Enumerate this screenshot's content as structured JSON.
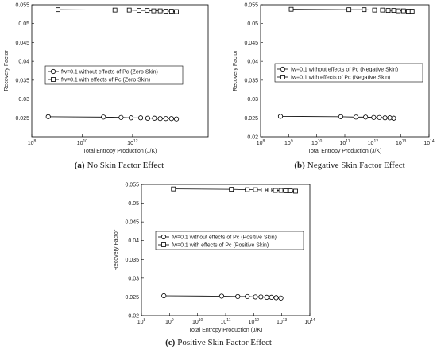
{
  "chart_data": [
    {
      "type": "line",
      "x_label": "Total Entropy Production (J/K)",
      "y_label": "Recovery Factor",
      "caption_label": "(a)",
      "caption": "No Skin Factor Effect",
      "xscale": "log",
      "xlim": [
        100000000,
        1000000000000000.0
      ],
      "xticks": [
        {
          "value": 100000000,
          "label": "10",
          "exponent": "8"
        },
        {
          "value": 10000000000,
          "label": "10",
          "exponent": "10"
        },
        {
          "value": 1000000000000,
          "label": "10",
          "exponent": "12"
        }
      ],
      "ylim": [
        0.02,
        0.055
      ],
      "yticks": [
        0.025,
        0.03,
        0.035,
        0.04,
        0.045,
        0.05,
        0.055
      ],
      "legend": "center-left",
      "series": [
        {
          "name": "fw=0.1 without effects of Pc (Zero Skin)",
          "color": "#000000",
          "marker": "circle",
          "x": [
            450000000,
            70000000000,
            350000000000,
            870000000000,
            2100000000000,
            4000000000000,
            7400000000000,
            12500000000000,
            21000000000000,
            35000000000000,
            55000000000000
          ],
          "values": [
            0.0253,
            0.0252,
            0.0251,
            0.025,
            0.025,
            0.0249,
            0.0249,
            0.0248,
            0.0248,
            0.0248,
            0.0247
          ]
        },
        {
          "name": "fw=0.1 with effects of Pc (Zero Skin)",
          "color": "#000000",
          "marker": "square",
          "x": [
            1100000000,
            200000000000,
            740000000000,
            1800000000000,
            3800000000000,
            6900000000000,
            12500000000000,
            21000000000000,
            35000000000000,
            55000000000000
          ],
          "values": [
            0.0537,
            0.0536,
            0.0536,
            0.0535,
            0.0535,
            0.0534,
            0.0534,
            0.0533,
            0.0533,
            0.0532
          ]
        }
      ]
    },
    {
      "type": "line",
      "x_label": "Total Entropy Production (J/K)",
      "y_label": "Recovery Factor",
      "caption_label": "(b)",
      "caption": "Negative Skin Factor Effect",
      "xscale": "log",
      "xlim": [
        100000000,
        100000000000000
      ],
      "xticks": [
        {
          "value": 100000000,
          "label": "10",
          "exponent": "8"
        },
        {
          "value": 1000000000,
          "label": "10",
          "exponent": "9"
        },
        {
          "value": 10000000000,
          "label": "10",
          "exponent": "10"
        },
        {
          "value": 100000000000,
          "label": "10",
          "exponent": "11"
        },
        {
          "value": 1000000000000,
          "label": "10",
          "exponent": "12"
        },
        {
          "value": 10000000000000,
          "label": "10",
          "exponent": "13"
        },
        {
          "value": 100000000000000,
          "label": "10",
          "exponent": "14"
        }
      ],
      "ylim": [
        0.02,
        0.055
      ],
      "yticks": [
        0.02,
        0.025,
        0.03,
        0.035,
        0.04,
        0.045,
        0.05,
        0.055
      ],
      "legend": "center-left",
      "series": [
        {
          "name": "fw=0.1 without effects of Pc (Negative Skin)",
          "color": "#000000",
          "marker": "circle",
          "x": [
            510000000,
            72000000000,
            250000000000,
            550000000000,
            1070000000000,
            1700000000000,
            2700000000000,
            4000000000000,
            5500000000000
          ],
          "values": [
            0.0254,
            0.0253,
            0.0252,
            0.0252,
            0.0251,
            0.0251,
            0.025,
            0.025,
            0.0249
          ]
        },
        {
          "name": "fw=0.1 with effects of Pc (Negative Skin)",
          "color": "#000000",
          "marker": "square",
          "x": [
            1230000000,
            140000000000,
            490000000000,
            1150000000000,
            2200000000000,
            3500000000000,
            5500000000000,
            8100000000000,
            12300000000000,
            18200000000000,
            25000000000000
          ],
          "values": [
            0.0538,
            0.0537,
            0.0537,
            0.0536,
            0.0536,
            0.0535,
            0.0535,
            0.0534,
            0.0534,
            0.0533,
            0.0533
          ]
        }
      ]
    },
    {
      "type": "line",
      "x_label": "Total Entropy Production (J/K)",
      "y_label": "Recovery Factor",
      "caption_label": "(c)",
      "caption": "Positive Skin Factor Effect",
      "xscale": "log",
      "xlim": [
        100000000,
        100000000000000
      ],
      "xticks": [
        {
          "value": 100000000,
          "label": "10",
          "exponent": "8"
        },
        {
          "value": 1000000000,
          "label": "10",
          "exponent": "9"
        },
        {
          "value": 10000000000,
          "label": "10",
          "exponent": "10"
        },
        {
          "value": 100000000000,
          "label": "10",
          "exponent": "11"
        },
        {
          "value": 1000000000000,
          "label": "10",
          "exponent": "12"
        },
        {
          "value": 10000000000000,
          "label": "10",
          "exponent": "13"
        },
        {
          "value": 100000000000000,
          "label": "10",
          "exponent": "14"
        }
      ],
      "ylim": [
        0.02,
        0.055
      ],
      "yticks": [
        0.02,
        0.025,
        0.03,
        0.035,
        0.04,
        0.045,
        0.05,
        0.055
      ],
      "legend": "center-left",
      "series": [
        {
          "name": "fw=0.1 without effects of Pc (Positive Skin)",
          "color": "#000000",
          "marker": "circle",
          "x": [
            630000000,
            72000000000,
            270000000000,
            590000000000,
            1150000000000,
            1800000000000,
            2900000000000,
            4300000000000,
            6300000000000,
            9300000000000
          ],
          "values": [
            0.0253,
            0.0252,
            0.0251,
            0.0251,
            0.025,
            0.025,
            0.0249,
            0.0249,
            0.0248,
            0.0247
          ]
        },
        {
          "name": "fw=0.1 with effects of Pc (Positive Skin)",
          "color": "#000000",
          "marker": "square",
          "x": [
            1380000000,
            160000000000,
            590000000000,
            1150000000000,
            2200000000000,
            3700000000000,
            5900000000000,
            9300000000000,
            13800000000000,
            20400000000000,
            31000000000000
          ],
          "values": [
            0.0538,
            0.0537,
            0.0536,
            0.0536,
            0.0535,
            0.0535,
            0.0534,
            0.0534,
            0.0533,
            0.0533,
            0.0532
          ]
        }
      ]
    }
  ]
}
